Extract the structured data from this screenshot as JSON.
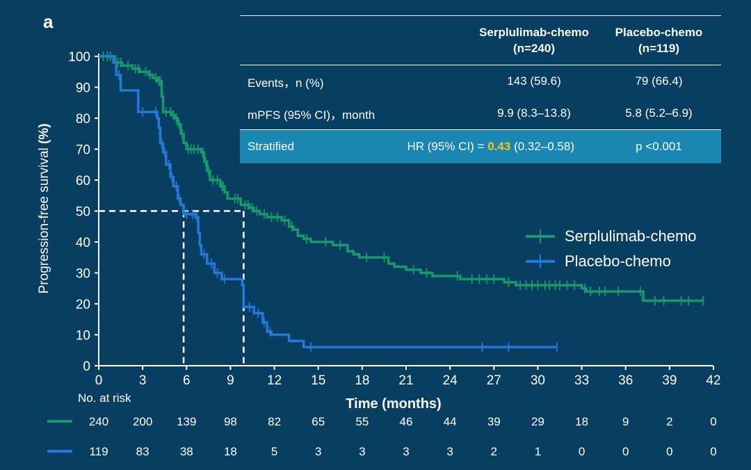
{
  "panel_label": "a",
  "stats_table": {
    "headers": [
      "",
      "Serplulimab-chemo\n(n=240)",
      "Placebo-chemo\n(n=119)"
    ],
    "header_serp": "Serplulimab-chemo",
    "header_serp_n": "(n=240)",
    "header_plac": "Placebo-chemo",
    "header_plac_n": "(n=119)",
    "events_label": "Events，n (%)",
    "events_serp": "143 (59.6)",
    "events_plac": "79 (66.4)",
    "mpfs_label": "mPFS (95% CI)，month",
    "mpfs_serp": "9.9 (8.3–13.8)",
    "mpfs_plac": "5.8 (5.2–6.9)",
    "stratified_label": "Stratified",
    "hr_prefix": "HR (95% CI) =",
    "hr_value": "0.43",
    "hr_ci": "(0.32–0.58)",
    "p_value": "p <0.001"
  },
  "colors": {
    "background": "#083e61",
    "serp": "#179a6b",
    "plac": "#2478d6",
    "highlight": "#f7c518",
    "stratified_bg": "#1a87b2"
  },
  "chart_data": {
    "type": "line",
    "title": "",
    "xlabel": "Time (months)",
    "ylabel_prefix": "Progression-free survival",
    "ylabel_unit": "(%)",
    "xlim": [
      0,
      42
    ],
    "ylim": [
      0,
      100
    ],
    "xticks": [
      0,
      3,
      6,
      9,
      12,
      15,
      18,
      21,
      24,
      27,
      30,
      33,
      36,
      39,
      42
    ],
    "yticks": [
      0,
      10,
      20,
      30,
      40,
      50,
      60,
      70,
      80,
      90,
      100
    ],
    "grid": false,
    "legend_position": "right-middle",
    "median_reference": {
      "y": 50,
      "x_values": [
        5.8,
        9.9
      ]
    },
    "series": [
      {
        "name": "Serplulimab-chemo",
        "steps": [
          [
            0,
            100
          ],
          [
            1,
            100
          ],
          [
            1.1,
            98
          ],
          [
            1.6,
            97
          ],
          [
            2.3,
            96
          ],
          [
            2.8,
            95
          ],
          [
            3.4,
            94
          ],
          [
            3.7,
            93
          ],
          [
            4,
            92
          ],
          [
            4.3,
            87
          ],
          [
            4.4,
            82
          ],
          [
            5,
            81
          ],
          [
            5.2,
            80
          ],
          [
            5.4,
            78
          ],
          [
            5.6,
            75
          ],
          [
            5.8,
            72
          ],
          [
            6,
            70
          ],
          [
            7,
            69
          ],
          [
            7.2,
            66
          ],
          [
            7.4,
            63
          ],
          [
            7.6,
            60
          ],
          [
            8.3,
            58
          ],
          [
            8.6,
            56
          ],
          [
            8.8,
            54
          ],
          [
            9.7,
            52
          ],
          [
            10.3,
            51
          ],
          [
            10.6,
            50
          ],
          [
            11,
            49
          ],
          [
            11.5,
            48
          ],
          [
            12.5,
            47
          ],
          [
            13,
            45
          ],
          [
            13.3,
            44
          ],
          [
            13.6,
            42
          ],
          [
            14,
            41
          ],
          [
            14.5,
            40
          ],
          [
            16,
            39
          ],
          [
            17,
            37
          ],
          [
            17.4,
            36
          ],
          [
            17.8,
            35
          ],
          [
            19.8,
            33
          ],
          [
            20.2,
            32
          ],
          [
            21,
            31
          ],
          [
            22,
            30
          ],
          [
            22.8,
            29
          ],
          [
            24.7,
            28
          ],
          [
            27.7,
            27
          ],
          [
            28.5,
            26
          ],
          [
            29.5,
            26
          ],
          [
            33,
            25
          ],
          [
            33.3,
            24
          ],
          [
            35,
            24
          ],
          [
            37.2,
            21
          ],
          [
            41.3,
            21
          ]
        ],
        "censor_x": [
          0.3,
          0.6,
          0.8,
          1.3,
          1.5,
          2,
          2.5,
          2.7,
          3.2,
          3.5,
          3.9,
          4.1,
          4.2,
          4.6,
          4.9,
          5.1,
          5.3,
          5.5,
          5.7,
          6.1,
          6.3,
          6.5,
          6.8,
          7.1,
          7.3,
          7.5,
          7.8,
          8.1,
          8.4,
          8.5,
          9.3,
          9.5,
          10,
          10.2,
          10.5,
          10.8,
          11.3,
          11.8,
          12.2,
          12.7,
          13.2,
          14.2,
          15.5,
          16.5,
          18.3,
          19.5,
          21.5,
          22.4,
          24.5,
          25.5,
          26,
          26.5,
          27,
          28,
          28.8,
          29.2,
          29.6,
          30,
          30.5,
          30.8,
          31.2,
          31.5,
          32,
          32.5,
          33.2,
          33.6,
          34.2,
          34.6,
          35.5,
          37,
          38,
          38.6,
          39.8,
          40.3,
          41.3
        ]
      },
      {
        "name": "Placebo-chemo",
        "steps": [
          [
            0,
            100
          ],
          [
            1,
            98
          ],
          [
            1.2,
            94
          ],
          [
            1.5,
            89
          ],
          [
            2.7,
            82
          ],
          [
            3.2,
            82
          ],
          [
            4,
            80
          ],
          [
            4.1,
            77
          ],
          [
            4.2,
            72
          ],
          [
            4.4,
            69
          ],
          [
            4.6,
            65
          ],
          [
            4.9,
            61
          ],
          [
            5.1,
            58
          ],
          [
            5.4,
            54
          ],
          [
            5.6,
            52
          ],
          [
            5.8,
            49
          ],
          [
            6.6,
            48
          ],
          [
            6.8,
            43
          ],
          [
            6.9,
            39
          ],
          [
            7,
            36
          ],
          [
            7.4,
            33
          ],
          [
            7.9,
            30
          ],
          [
            8.4,
            28
          ],
          [
            9.8,
            26
          ],
          [
            9.9,
            19
          ],
          [
            10.6,
            17
          ],
          [
            11.2,
            14
          ],
          [
            11.5,
            11
          ],
          [
            11.8,
            10
          ],
          [
            13,
            8
          ],
          [
            14,
            6
          ],
          [
            31.3,
            6
          ]
        ],
        "censor_x": [
          1.4,
          3,
          3.9,
          4.3,
          4.5,
          4.8,
          5,
          5.3,
          5.5,
          6,
          6.4,
          6.7,
          7.2,
          7.7,
          8.1,
          8.6,
          10.3,
          10.9,
          11.3,
          11.7,
          14.5,
          26.2,
          28,
          31.3
        ]
      }
    ],
    "risk_table": {
      "title": "No. at risk",
      "times": [
        0,
        3,
        6,
        9,
        12,
        15,
        18,
        21,
        24,
        27,
        30,
        33,
        36,
        39,
        42
      ],
      "rows": [
        {
          "series": "Serplulimab-chemo",
          "counts": [
            240,
            200,
            139,
            98,
            82,
            65,
            55,
            46,
            44,
            39,
            29,
            18,
            9,
            2,
            0
          ]
        },
        {
          "series": "Placebo-chemo",
          "counts": [
            119,
            83,
            38,
            18,
            5,
            3,
            3,
            3,
            3,
            2,
            1,
            0,
            0,
            0,
            0
          ]
        }
      ]
    }
  }
}
